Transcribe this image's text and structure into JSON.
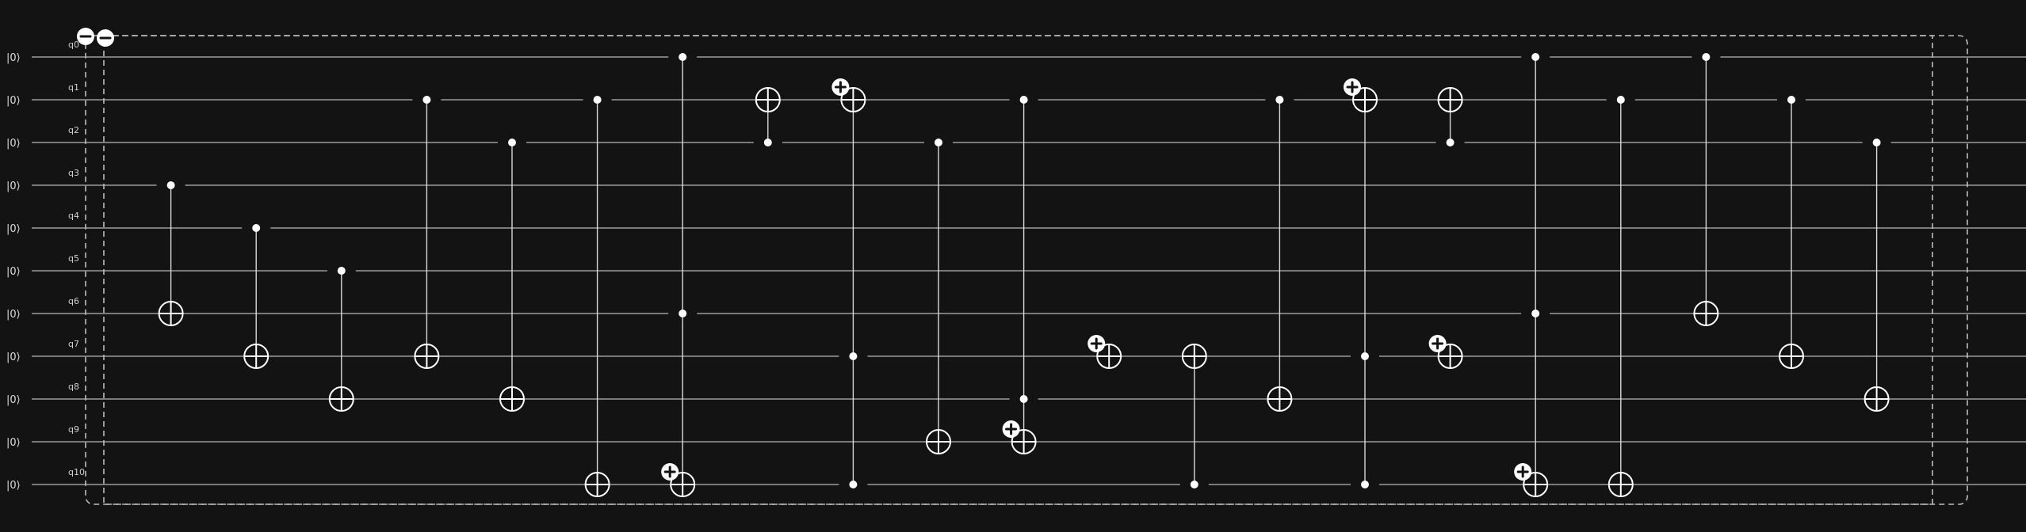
{
  "circuit": {
    "init_state": "|0⟩",
    "qubits": [
      "q0",
      "q1",
      "q2",
      "q3",
      "q4",
      "q5",
      "q6",
      "q7",
      "q8",
      "q9",
      "q10"
    ],
    "gates": [
      {
        "column": 1,
        "type": "cnot",
        "controls": [
          3
        ],
        "target": 6
      },
      {
        "column": 2,
        "type": "cnot",
        "controls": [
          4
        ],
        "target": 7
      },
      {
        "column": 3,
        "type": "cnot",
        "controls": [
          5
        ],
        "target": 8
      },
      {
        "column": 4,
        "type": "cnot",
        "controls": [
          1
        ],
        "target": 7
      },
      {
        "column": 5,
        "type": "cnot",
        "controls": [
          2
        ],
        "target": 8
      },
      {
        "column": 6,
        "type": "cnot",
        "controls": [
          1
        ],
        "target": 10
      },
      {
        "column": 7,
        "type": "cnot",
        "controls": [
          0,
          6
        ],
        "target": 10,
        "badge": true
      },
      {
        "column": 8,
        "type": "cnot",
        "controls": [
          2
        ],
        "target": 1
      },
      {
        "column": 9,
        "type": "cnot",
        "controls": [
          7,
          10
        ],
        "target": 1,
        "badge": true
      },
      {
        "column": 10,
        "type": "cnot",
        "controls": [
          2
        ],
        "target": 9
      },
      {
        "column": 11,
        "type": "cnot",
        "controls": [
          1,
          8
        ],
        "target": 9,
        "badge": true
      },
      {
        "column": 12,
        "type": "x",
        "controls": [],
        "target": 7,
        "badge": true
      },
      {
        "column": 13,
        "type": "cnot",
        "controls": [
          10
        ],
        "target": 7
      },
      {
        "column": 14,
        "type": "cnot",
        "controls": [
          1
        ],
        "target": 8
      },
      {
        "column": 15,
        "type": "cnot",
        "controls": [
          7,
          10
        ],
        "target": 1,
        "badge": true
      },
      {
        "column": 16,
        "type": "cnot",
        "controls": [
          2
        ],
        "target": 1
      },
      {
        "column": 16,
        "type": "x",
        "controls": [],
        "target": 7,
        "badge": true
      },
      {
        "column": 17,
        "type": "cnot",
        "controls": [
          0,
          6
        ],
        "target": 10,
        "badge": true
      },
      {
        "column": 18,
        "type": "cnot",
        "controls": [
          1
        ],
        "target": 10
      },
      {
        "column": 19,
        "type": "cnot",
        "controls": [
          0
        ],
        "target": 6
      },
      {
        "column": 20,
        "type": "cnot",
        "controls": [
          1
        ],
        "target": 7
      },
      {
        "column": 21,
        "type": "cnot",
        "controls": [
          2
        ],
        "target": 8
      }
    ]
  },
  "toolbar": {
    "collapse_icon_1": "minus-icon",
    "collapse_icon_2": "minus-icon"
  },
  "colors": {
    "background": "#131313",
    "wire": "#b8b8b8",
    "gate": "#ffffff"
  }
}
